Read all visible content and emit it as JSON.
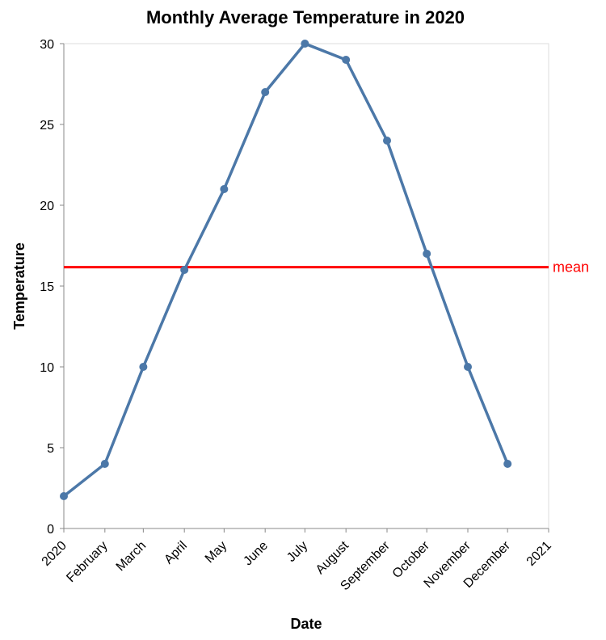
{
  "chart_data": {
    "type": "line",
    "title": "Monthly Average Temperature in 2020",
    "xlabel": "Date",
    "ylabel": "Temperature",
    "ylim": [
      0,
      30
    ],
    "yticks": [
      "0",
      "5",
      "10",
      "15",
      "20",
      "25",
      "30"
    ],
    "x_tick_labels": [
      "2020",
      "February",
      "March",
      "April",
      "May",
      "June",
      "July",
      "August",
      "September",
      "October",
      "November",
      "December",
      "2021"
    ],
    "x": [
      "2020-01-01",
      "2020-02-01",
      "2020-03-01",
      "2020-04-01",
      "2020-05-01",
      "2020-06-01",
      "2020-07-01",
      "2020-08-01",
      "2020-09-01",
      "2020-10-01",
      "2020-11-01",
      "2020-12-01"
    ],
    "series": [
      {
        "values": [
          2,
          4,
          10,
          16,
          21,
          27,
          30,
          29,
          24,
          17,
          10,
          4
        ]
      }
    ],
    "mean": {
      "label": "mean",
      "value": 16.17
    },
    "grid": false,
    "colors": {
      "line": "#4c78a8",
      "mean": "#ff0000",
      "axis": "#888888",
      "frame": "#dddddd"
    }
  }
}
